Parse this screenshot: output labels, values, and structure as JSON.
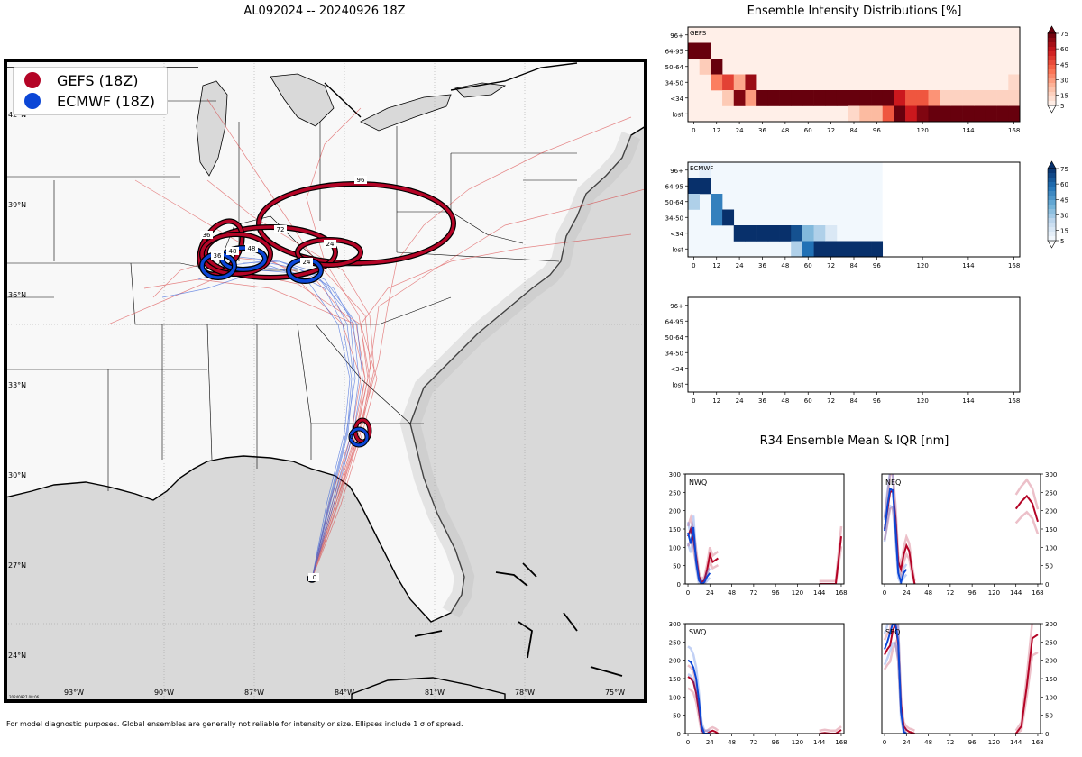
{
  "header": {
    "storm_title": "AL092024 -- 20240926 18Z",
    "intensity_title": "Ensemble Intensity Distributions [%]",
    "r34_title": "R34 Ensemble Mean & IQR [nm]"
  },
  "legend": {
    "items": [
      {
        "label": "GEFS (18Z)",
        "color": "#b40426"
      },
      {
        "label": "ECMWF (18Z)",
        "color": "#0b46d6"
      }
    ]
  },
  "map": {
    "lat_labels": [
      "42°N",
      "39°N",
      "36°N",
      "33°N",
      "30°N",
      "27°N",
      "24°N"
    ],
    "lon_labels": [
      "93°W",
      "90°W",
      "87°W",
      "84°W",
      "81°W",
      "78°W",
      "75°W"
    ],
    "timestamp": "20240927 08:06",
    "gefs_ellipse_labels": [
      "24",
      "36",
      "48",
      "72",
      "96",
      "0"
    ],
    "ecmwf_ellipse_labels": [
      "24",
      "36",
      "48",
      "0"
    ]
  },
  "footer": "For model diagnostic purposes. Global ensembles are generally not reliable for intensity or size. Ellipses include 1 σ of spread.",
  "chart_data": [
    {
      "type": "heatmap",
      "title": "GEFS",
      "y_categories": [
        "96+",
        "64-95",
        "50-64",
        "34-50",
        "<34",
        "lost"
      ],
      "x_ticks": [
        0,
        12,
        24,
        36,
        48,
        60,
        72,
        84,
        96,
        120,
        144,
        168
      ],
      "xlim": [
        -3,
        171
      ],
      "colorbar_ticks": [
        5,
        15,
        30,
        45,
        60,
        75
      ],
      "colormap": "Reds",
      "cells": [
        {
          "t": 0,
          "cat": "64-95",
          "pct": 80
        },
        {
          "t": 6,
          "cat": "64-95",
          "pct": 80
        },
        {
          "t": 6,
          "cat": "50-64",
          "pct": 14
        },
        {
          "t": 12,
          "cat": "50-64",
          "pct": 80
        },
        {
          "t": 12,
          "cat": "34-50",
          "pct": 35
        },
        {
          "t": 18,
          "cat": "34-50",
          "pct": 50
        },
        {
          "t": 18,
          "cat": "<34",
          "pct": 15
        },
        {
          "t": 24,
          "cat": "34-50",
          "pct": 25
        },
        {
          "t": 24,
          "cat": "<34",
          "pct": 75
        },
        {
          "t": 30,
          "cat": "34-50",
          "pct": 70
        },
        {
          "t": 30,
          "cat": "<34",
          "pct": 28
        },
        {
          "t": 36,
          "cat": "<34",
          "pct": 95
        },
        {
          "t": 42,
          "cat": "<34",
          "pct": 95
        },
        {
          "t": 48,
          "cat": "<34",
          "pct": 95
        },
        {
          "t": 54,
          "cat": "<34",
          "pct": 95
        },
        {
          "t": 60,
          "cat": "<34",
          "pct": 95
        },
        {
          "t": 66,
          "cat": "<34",
          "pct": 95
        },
        {
          "t": 72,
          "cat": "<34",
          "pct": 95
        },
        {
          "t": 78,
          "cat": "<34",
          "pct": 95
        },
        {
          "t": 84,
          "cat": "<34",
          "pct": 95
        },
        {
          "t": 84,
          "cat": "lost",
          "pct": 10
        },
        {
          "t": 90,
          "cat": "<34",
          "pct": 95
        },
        {
          "t": 90,
          "cat": "lost",
          "pct": 20
        },
        {
          "t": 96,
          "cat": "<34",
          "pct": 95
        },
        {
          "t": 96,
          "cat": "lost",
          "pct": 20
        },
        {
          "t": 102,
          "cat": "<34",
          "pct": 80
        },
        {
          "t": 102,
          "cat": "lost",
          "pct": 45
        },
        {
          "t": 108,
          "cat": "<34",
          "pct": 60
        },
        {
          "t": 108,
          "cat": "lost",
          "pct": 95
        },
        {
          "t": 114,
          "cat": "<34",
          "pct": 45
        },
        {
          "t": 114,
          "cat": "lost",
          "pct": 60
        },
        {
          "t": 120,
          "cat": "<34",
          "pct": 45
        },
        {
          "t": 120,
          "cat": "lost",
          "pct": 75
        },
        {
          "t": 126,
          "cat": "<34",
          "pct": 30
        },
        {
          "t": 126,
          "cat": "lost",
          "pct": 85
        },
        {
          "t": 132,
          "cat": "<34",
          "pct": 12
        },
        {
          "t": 132,
          "cat": "lost",
          "pct": 95
        },
        {
          "t": 138,
          "cat": "<34",
          "pct": 12
        },
        {
          "t": 138,
          "cat": "lost",
          "pct": 95
        },
        {
          "t": 144,
          "cat": "<34",
          "pct": 12
        },
        {
          "t": 144,
          "cat": "lost",
          "pct": 95
        },
        {
          "t": 150,
          "cat": "<34",
          "pct": 12
        },
        {
          "t": 150,
          "cat": "lost",
          "pct": 95
        },
        {
          "t": 156,
          "cat": "<34",
          "pct": 12
        },
        {
          "t": 156,
          "cat": "lost",
          "pct": 95
        },
        {
          "t": 162,
          "cat": "<34",
          "pct": 12
        },
        {
          "t": 162,
          "cat": "lost",
          "pct": 95
        },
        {
          "t": 168,
          "cat": "34-50",
          "pct": 10
        },
        {
          "t": 168,
          "cat": "<34",
          "pct": 12
        },
        {
          "t": 168,
          "cat": "lost",
          "pct": 95
        }
      ]
    },
    {
      "type": "heatmap",
      "title": "ECMWF",
      "y_categories": [
        "96+",
        "64-95",
        "50-64",
        "34-50",
        "<34",
        "lost"
      ],
      "x_ticks": [
        0,
        12,
        24,
        36,
        48,
        60,
        72,
        84,
        96,
        120,
        144,
        168
      ],
      "xlim": [
        -3,
        171
      ],
      "data_until": 99,
      "colorbar_ticks": [
        5,
        15,
        30,
        45,
        60,
        75
      ],
      "colormap": "Blues",
      "cells": [
        {
          "t": 0,
          "cat": "64-95",
          "pct": 90
        },
        {
          "t": 6,
          "cat": "96+",
          "pct": 8
        },
        {
          "t": 6,
          "cat": "64-95",
          "pct": 90
        },
        {
          "t": 0,
          "cat": "50-64",
          "pct": 25
        },
        {
          "t": 12,
          "cat": "50-64",
          "pct": 55
        },
        {
          "t": 12,
          "cat": "34-50",
          "pct": 55
        },
        {
          "t": 18,
          "cat": "34-50",
          "pct": 95
        },
        {
          "t": 24,
          "cat": "<34",
          "pct": 95
        },
        {
          "t": 30,
          "cat": "<34",
          "pct": 95
        },
        {
          "t": 36,
          "cat": "<34",
          "pct": 95
        },
        {
          "t": 42,
          "cat": "<34",
          "pct": 95
        },
        {
          "t": 48,
          "cat": "<34",
          "pct": 95
        },
        {
          "t": 54,
          "cat": "<34",
          "pct": 70
        },
        {
          "t": 54,
          "cat": "lost",
          "pct": 25
        },
        {
          "t": 60,
          "cat": "<34",
          "pct": 35
        },
        {
          "t": 60,
          "cat": "lost",
          "pct": 60
        },
        {
          "t": 66,
          "cat": "<34",
          "pct": 25
        },
        {
          "t": 66,
          "cat": "lost",
          "pct": 95
        },
        {
          "t": 72,
          "cat": "<34",
          "pct": 12
        },
        {
          "t": 72,
          "cat": "lost",
          "pct": 95
        },
        {
          "t": 78,
          "cat": "lost",
          "pct": 95
        },
        {
          "t": 84,
          "cat": "lost",
          "pct": 95
        },
        {
          "t": 90,
          "cat": "lost",
          "pct": 95
        },
        {
          "t": 96,
          "cat": "lost",
          "pct": 95
        }
      ]
    },
    {
      "type": "heatmap",
      "title": "",
      "y_categories": [
        "96+",
        "64-95",
        "50-64",
        "34-50",
        "<34",
        "lost"
      ],
      "x_ticks": [
        0,
        12,
        24,
        36,
        48,
        60,
        72,
        84,
        96,
        120,
        144,
        168
      ],
      "xlim": [
        -3,
        171
      ],
      "cells": []
    },
    {
      "type": "line",
      "title": "NWQ",
      "x_ticks": [
        0,
        24,
        48,
        72,
        96,
        120,
        144,
        168
      ],
      "y_ticks": [
        0,
        50,
        100,
        150,
        200,
        250,
        300
      ],
      "ylim": [
        0,
        300
      ],
      "xlim": [
        -3,
        171
      ],
      "y_axis_side": "left",
      "series": [
        {
          "name": "GEFS",
          "color": "#b40426",
          "x": [
            0,
            3,
            6,
            9,
            12,
            15,
            18,
            21,
            24,
            27,
            30,
            33
          ],
          "y": [
            130,
            150,
            120,
            75,
            20,
            5,
            10,
            40,
            80,
            60,
            65,
            70
          ]
        },
        {
          "name": "GEFS",
          "color": "#b40426",
          "x": [
            144,
            150,
            156,
            162,
            168
          ],
          "y": [
            0,
            0,
            0,
            0,
            130
          ]
        },
        {
          "name": "ECMWF",
          "color": "#0b46d6",
          "x": [
            0,
            3,
            6,
            9,
            12,
            15,
            18,
            21,
            24
          ],
          "y": [
            140,
            110,
            155,
            60,
            10,
            0,
            5,
            20,
            30
          ]
        }
      ]
    },
    {
      "type": "line",
      "title": "NEQ",
      "x_ticks": [
        0,
        24,
        48,
        72,
        96,
        120,
        144,
        168
      ],
      "y_ticks": [
        0,
        50,
        100,
        150,
        200,
        250,
        300
      ],
      "ylim": [
        0,
        300
      ],
      "xlim": [
        -3,
        171
      ],
      "y_axis_side": "right",
      "series": [
        {
          "name": "GEFS",
          "color": "#b40426",
          "x": [
            0,
            3,
            6,
            9,
            12,
            15,
            18,
            21,
            24,
            27,
            30,
            33
          ],
          "y": [
            150,
            200,
            250,
            255,
            180,
            60,
            40,
            80,
            105,
            90,
            40,
            0
          ]
        },
        {
          "name": "GEFS",
          "color": "#b40426",
          "x": [
            144,
            150,
            156,
            162,
            168
          ],
          "y": [
            205,
            225,
            240,
            220,
            170
          ]
        },
        {
          "name": "ECMWF",
          "color": "#0b46d6",
          "x": [
            0,
            3,
            6,
            9,
            12,
            15,
            18,
            21,
            24
          ],
          "y": [
            145,
            210,
            260,
            255,
            150,
            30,
            5,
            30,
            40
          ]
        }
      ]
    },
    {
      "type": "line",
      "title": "SWQ",
      "x_ticks": [
        0,
        24,
        48,
        72,
        96,
        120,
        144,
        168
      ],
      "y_ticks": [
        0,
        50,
        100,
        150,
        200,
        250,
        300
      ],
      "ylim": [
        0,
        300
      ],
      "xlim": [
        -3,
        171
      ],
      "y_axis_side": "left",
      "series": [
        {
          "name": "GEFS",
          "color": "#b40426",
          "x": [
            0,
            3,
            6,
            9,
            12,
            15,
            18,
            21,
            24,
            27,
            30,
            33
          ],
          "y": [
            155,
            150,
            140,
            110,
            60,
            10,
            0,
            0,
            5,
            8,
            5,
            0
          ]
        },
        {
          "name": "GEFS",
          "color": "#b40426",
          "x": [
            144,
            150,
            156,
            162,
            168
          ],
          "y": [
            0,
            2,
            0,
            0,
            10
          ]
        },
        {
          "name": "ECMWF",
          "color": "#0b46d6",
          "x": [
            0,
            3,
            6,
            9,
            12,
            15,
            18,
            21,
            24
          ],
          "y": [
            200,
            195,
            180,
            150,
            90,
            20,
            0,
            0,
            0
          ]
        }
      ]
    },
    {
      "type": "line",
      "title": "SEQ",
      "x_ticks": [
        0,
        24,
        48,
        72,
        96,
        120,
        144,
        168
      ],
      "y_ticks": [
        0,
        50,
        100,
        150,
        200,
        250,
        300
      ],
      "ylim": [
        0,
        300
      ],
      "xlim": [
        -3,
        171
      ],
      "y_axis_side": "right",
      "series": [
        {
          "name": "GEFS",
          "color": "#b40426",
          "x": [
            0,
            3,
            6,
            9,
            12,
            15,
            18,
            21,
            24,
            27,
            30,
            33
          ],
          "y": [
            215,
            230,
            240,
            280,
            300,
            240,
            80,
            20,
            10,
            5,
            3,
            0
          ]
        },
        {
          "name": "GEFS",
          "color": "#b40426",
          "x": [
            144,
            150,
            156,
            162,
            168
          ],
          "y": [
            0,
            20,
            130,
            260,
            270
          ]
        },
        {
          "name": "ECMWF",
          "color": "#0b46d6",
          "x": [
            0,
            3,
            6,
            9,
            12,
            15,
            18,
            21,
            24
          ],
          "y": [
            230,
            250,
            275,
            300,
            300,
            250,
            60,
            5,
            0
          ]
        }
      ]
    }
  ]
}
